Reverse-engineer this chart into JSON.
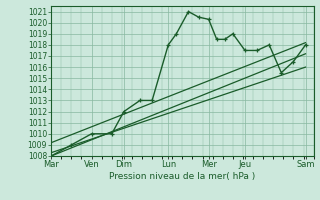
{
  "title": "",
  "xlabel": "Pression niveau de la mer( hPa )",
  "ylabel": "",
  "bg_color": "#cce8dc",
  "grid_color": "#88b8a0",
  "line_color": "#1a5c2a",
  "tick_label_color": "#1a5c2a",
  "ylim": [
    1008,
    1021.5
  ],
  "xlim": [
    0,
    6.5
  ],
  "yticks": [
    1008,
    1009,
    1010,
    1011,
    1012,
    1013,
    1014,
    1015,
    1016,
    1017,
    1018,
    1019,
    1020,
    1021
  ],
  "xtick_labels": [
    "Mar",
    "Ven",
    "Dim",
    "Lun",
    "Mer",
    "Jeu",
    "Sam"
  ],
  "xtick_positions": [
    0,
    1,
    1.8,
    2.9,
    3.9,
    4.8,
    6.3
  ],
  "forecast_x": [
    0,
    0.5,
    1.0,
    1.5,
    1.8,
    2.2,
    2.5,
    2.9,
    3.1,
    3.4,
    3.65,
    3.9,
    4.1,
    4.3,
    4.5,
    4.8,
    5.1,
    5.4,
    5.7,
    6.0,
    6.3
  ],
  "forecast_y": [
    1008,
    1009,
    1010,
    1010,
    1012,
    1013,
    1013,
    1018,
    1019,
    1021,
    1020.5,
    1020.3,
    1018.5,
    1018.5,
    1019,
    1017.5,
    1017.5,
    1018,
    1015.5,
    1016.5,
    1018
  ],
  "trend1_x": [
    0,
    6.3
  ],
  "trend1_y": [
    1008,
    1017.2
  ],
  "trend2_x": [
    0,
    6.3
  ],
  "trend2_y": [
    1008.3,
    1016.0
  ],
  "trend3_x": [
    0,
    6.3
  ],
  "trend3_y": [
    1009.2,
    1018.2
  ],
  "ytick_fontsize": 5.5,
  "xtick_fontsize": 6.0,
  "xlabel_fontsize": 6.5
}
